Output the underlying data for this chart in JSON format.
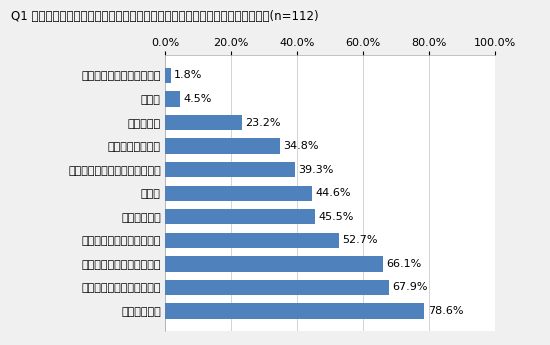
{
  "title": "Q1 クルーズ旅行ならではの魅力だと感じる要素を以下から全て選んでください(n=112)",
  "categories": [
    "魅力だと感じる要素はない",
    "その他",
    "金額の安さ",
    "他旅行者との交流",
    "荷物の取り扱いに関する利便性",
    "豪華さ",
    "海上での生活",
    "移動が少なくて済む利便性",
    "船内でのリラクゼーション",
    "船内で開催されるイベント",
    "船内での飲食"
  ],
  "values": [
    1.8,
    4.5,
    23.2,
    34.8,
    39.3,
    44.6,
    45.5,
    52.7,
    66.1,
    67.9,
    78.6
  ],
  "bar_color": "#4f81bd",
  "background_color": "#f0f0f0",
  "plot_bg_color": "#ffffff",
  "xlim": [
    0,
    100
  ],
  "xtick_labels": [
    "0.0%",
    "20.0%",
    "40.0%",
    "60.0%",
    "80.0%",
    "100.0%"
  ],
  "xtick_values": [
    0,
    20,
    40,
    60,
    80,
    100
  ],
  "title_fontsize": 8.5,
  "label_fontsize": 8,
  "value_fontsize": 8
}
